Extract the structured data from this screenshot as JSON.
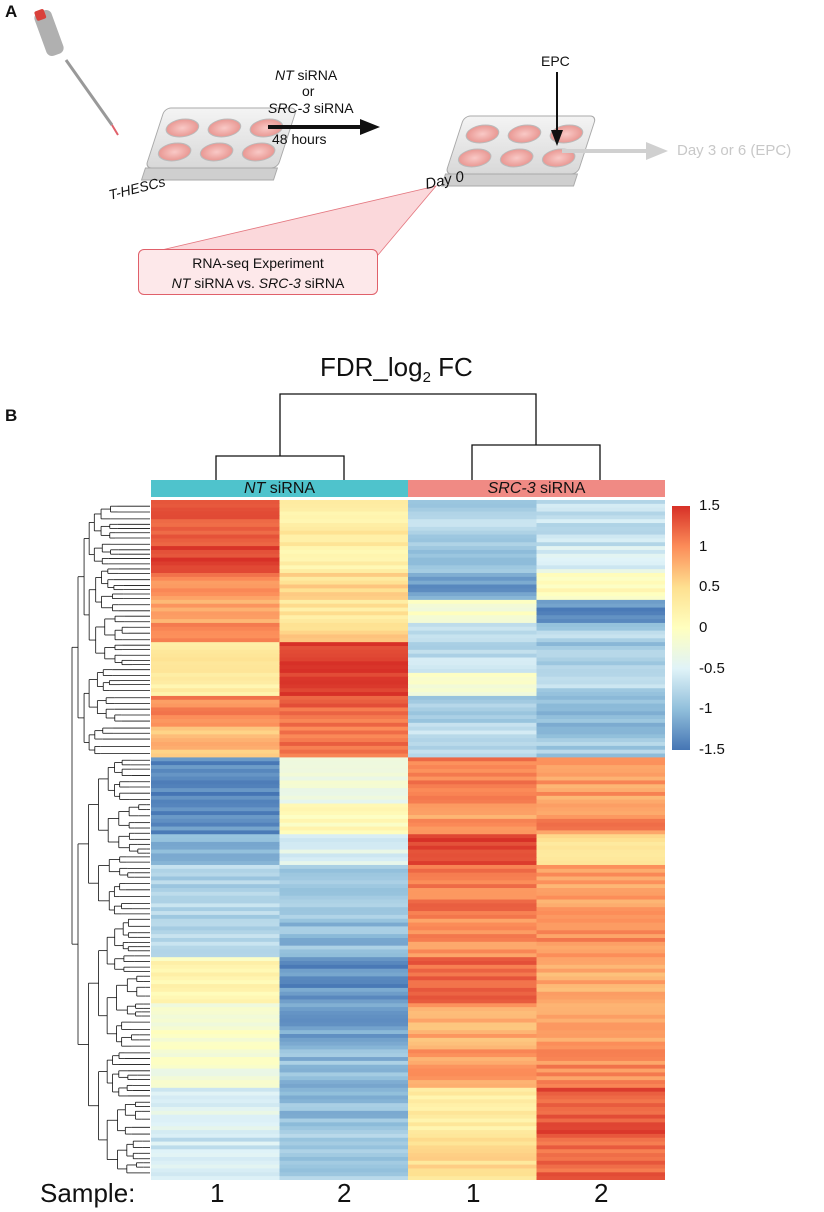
{
  "panel_a": {
    "letter": "A",
    "cell_line": "T-HESCs",
    "treatment_line1": "NT",
    "treatment_line1_suffix": " siRNA",
    "treatment_or": "or",
    "treatment_line3": "SRC-3",
    "treatment_line3_suffix": " siRNA",
    "duration": "48 hours",
    "epc": "EPC",
    "day0": "Day 0",
    "day36": "Day 3 or 6 (EPC)",
    "rnaseq_title": "RNA-seq Experiment",
    "rnaseq_nt": "NT",
    "rnaseq_nt_suffix": " siRNA  vs. ",
    "rnaseq_src": "SRC-3",
    "rnaseq_src_suffix": " siRNA"
  },
  "panel_b": {
    "letter": "B",
    "title_main": "FDR_log",
    "title_sub": "2",
    "title_end": " FC",
    "group1_italic": "NT",
    "group1_rest": " siRNA",
    "group2_italic": "SRC-3",
    "group2_rest": " siRNA",
    "group1_color": "#4fc3cc",
    "group2_color": "#f08a84",
    "sample_prefix": "Sample:",
    "sample_labels": [
      "1",
      "2",
      "1",
      "2"
    ]
  },
  "chart_data": {
    "type": "heatmap",
    "title": "FDR_log2 FC",
    "columns": [
      "NT siRNA 1",
      "NT siRNA 2",
      "SRC-3 siRNA 1",
      "SRC-3 siRNA 2"
    ],
    "colorbar": {
      "range": [
        -1.5,
        1.5
      ],
      "ticks": [
        "1.5",
        "1",
        "0.5",
        "0",
        "-0.5",
        "-1",
        "-1.5"
      ],
      "colors": [
        "#4575b4",
        "#91bfdb",
        "#e0f3f8",
        "#ffffbf",
        "#fee090",
        "#fc8d59",
        "#d73027"
      ]
    },
    "row_blocks": [
      {
        "rows": 12,
        "values": [
          1.3,
          0.3,
          -0.8,
          -0.7
        ]
      },
      {
        "rows": 7,
        "values": [
          1.45,
          0.2,
          -1.0,
          -0.5
        ]
      },
      {
        "rows": 7,
        "values": [
          1.0,
          0.5,
          -1.2,
          0.0
        ]
      },
      {
        "rows": 6,
        "values": [
          0.9,
          0.4,
          -0.1,
          -1.3
        ]
      },
      {
        "rows": 5,
        "values": [
          1.0,
          0.6,
          -0.6,
          -0.8
        ]
      },
      {
        "rows": 8,
        "values": [
          0.4,
          1.4,
          -0.7,
          -0.9
        ]
      },
      {
        "rows": 6,
        "values": [
          0.3,
          1.5,
          -0.2,
          -0.8
        ]
      },
      {
        "rows": 8,
        "values": [
          1.0,
          1.2,
          -0.8,
          -1.0
        ]
      },
      {
        "rows": 8,
        "values": [
          0.7,
          1.1,
          -0.7,
          -0.9
        ]
      },
      {
        "rows": 12,
        "values": [
          -1.4,
          -0.3,
          1.1,
          0.9
        ]
      },
      {
        "rows": 8,
        "values": [
          -1.3,
          0.1,
          0.9,
          1.0
        ]
      },
      {
        "rows": 8,
        "values": [
          -1.0,
          -0.5,
          1.45,
          0.4
        ]
      },
      {
        "rows": 14,
        "values": [
          -0.8,
          -0.9,
          1.1,
          0.9
        ]
      },
      {
        "rows": 10,
        "values": [
          -0.7,
          -1.0,
          1.0,
          1.0
        ]
      },
      {
        "rows": 12,
        "values": [
          0.1,
          -1.3,
          1.2,
          0.8
        ]
      },
      {
        "rows": 12,
        "values": [
          -0.1,
          -1.2,
          0.8,
          0.9
        ]
      },
      {
        "rows": 10,
        "values": [
          -0.2,
          -1.0,
          0.9,
          1.0
        ]
      },
      {
        "rows": 12,
        "values": [
          -0.5,
          -1.0,
          0.3,
          1.3
        ]
      },
      {
        "rows": 12,
        "values": [
          -0.6,
          -0.9,
          0.5,
          1.2
        ]
      }
    ]
  }
}
